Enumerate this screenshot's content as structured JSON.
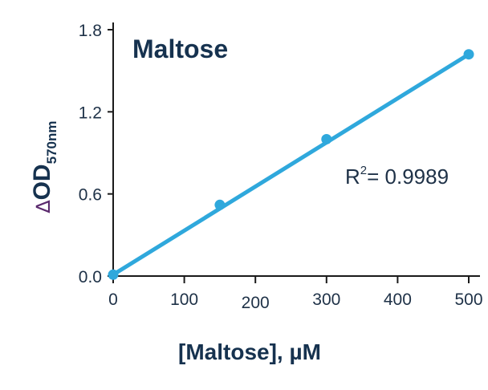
{
  "chart_data": {
    "type": "scatter",
    "title": "Maltose",
    "xlabel": "[Maltose], µM",
    "ylabel": {
      "symbol": "∆",
      "main": "OD",
      "subscript": "570nm"
    },
    "xlim": [
      0,
      500
    ],
    "ylim": [
      0,
      1.8
    ],
    "xticks": [
      "0",
      "100",
      "200",
      "300",
      "400",
      "500"
    ],
    "yticks": [
      "0.0",
      "0.6",
      "1.2",
      "1.8"
    ],
    "points": [
      {
        "x": 0,
        "y": 0.01
      },
      {
        "x": 150,
        "y": 0.52
      },
      {
        "x": 300,
        "y": 1.0
      },
      {
        "x": 500,
        "y": 1.62
      }
    ],
    "fit_line": {
      "x": [
        0,
        500
      ],
      "y": [
        0.01,
        1.62
      ]
    },
    "annotation": {
      "r_label": "R",
      "r_sup": "2",
      "r_value": "= 0.9989"
    },
    "grid": false,
    "colors": {
      "series": "#2fa8dc",
      "text": "#16324f",
      "axis": "#1a1a1a",
      "delta": "#5b2a6e"
    }
  }
}
